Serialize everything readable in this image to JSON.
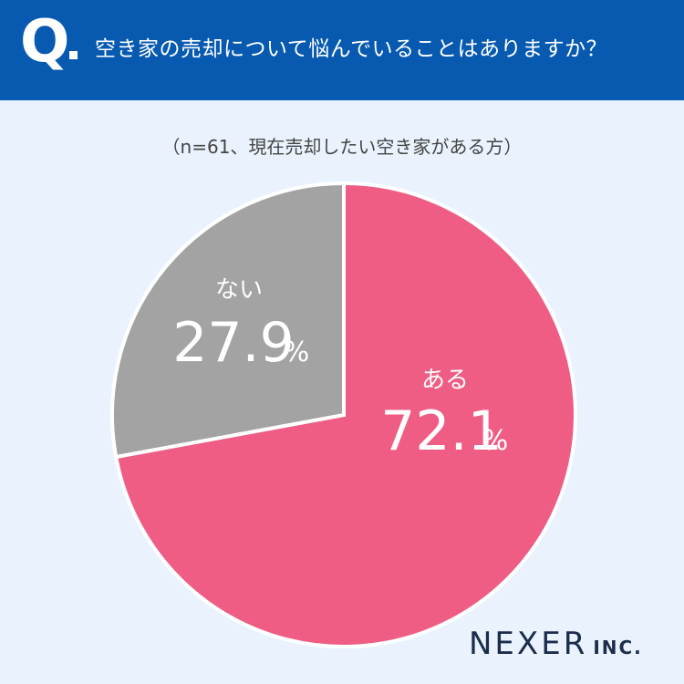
{
  "header": {
    "q_mark": "Q",
    "question": "空き家の売却について悩んでいることはありますか？"
  },
  "subtitle": "（n=61、現在売却したい空き家がある方）",
  "logo": {
    "name": "NEXER",
    "suffix": "INC."
  },
  "colors": {
    "header_bg": "#075ab0",
    "page_bg": "#eaf3fd",
    "yes": "#ef5c84",
    "no": "#a3a3a3"
  },
  "chart_data": {
    "type": "pie",
    "title": "空き家の売却について悩んでいることはありますか？",
    "subtitle": "（n=61、現在売却したい空き家がある方）",
    "start": "12 o'clock",
    "direction": "clockwise",
    "slices": [
      {
        "label": "ある",
        "value": 72.1,
        "display": "72.1",
        "unit": "%",
        "color": "#ef5c84"
      },
      {
        "label": "ない",
        "value": 27.9,
        "display": "27.9",
        "unit": "%",
        "color": "#a3a3a3"
      }
    ]
  }
}
